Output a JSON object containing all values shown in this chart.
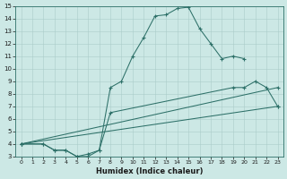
{
  "xlabel": "Humidex (Indice chaleur)",
  "ylabel": "",
  "xlim": [
    -0.5,
    23.5
  ],
  "ylim": [
    3,
    15
  ],
  "xticks": [
    0,
    1,
    2,
    3,
    4,
    5,
    6,
    7,
    8,
    9,
    10,
    11,
    12,
    13,
    14,
    15,
    16,
    17,
    18,
    19,
    20,
    21,
    22,
    23
  ],
  "yticks": [
    3,
    4,
    5,
    6,
    7,
    8,
    9,
    10,
    11,
    12,
    13,
    14,
    15
  ],
  "bg_color": "#cce8e5",
  "grid_color": "#aaccca",
  "line_color": "#2d7068",
  "lines": [
    {
      "x": [
        0,
        2,
        3,
        4,
        5,
        6,
        7,
        8,
        9,
        10,
        11,
        12,
        13,
        14,
        15,
        16,
        17,
        18,
        19,
        20
      ],
      "y": [
        4,
        4,
        3.5,
        3.5,
        3,
        3,
        3.5,
        8.5,
        9,
        11,
        12.5,
        14.2,
        14.3,
        14.8,
        14.9,
        13.2,
        12,
        10.8,
        11,
        10.8
      ]
    },
    {
      "x": [
        0,
        2,
        3,
        4,
        5,
        6,
        7,
        8,
        19,
        20,
        21,
        22,
        23
      ],
      "y": [
        4,
        4,
        3.5,
        3.5,
        3,
        3.2,
        3.5,
        6.5,
        8.5,
        8.5,
        9,
        8.5,
        7
      ]
    },
    {
      "x": [
        0,
        23
      ],
      "y": [
        4,
        8.5
      ]
    },
    {
      "x": [
        0,
        23
      ],
      "y": [
        4,
        7
      ]
    }
  ],
  "figsize": [
    3.2,
    2.0
  ],
  "dpi": 100
}
